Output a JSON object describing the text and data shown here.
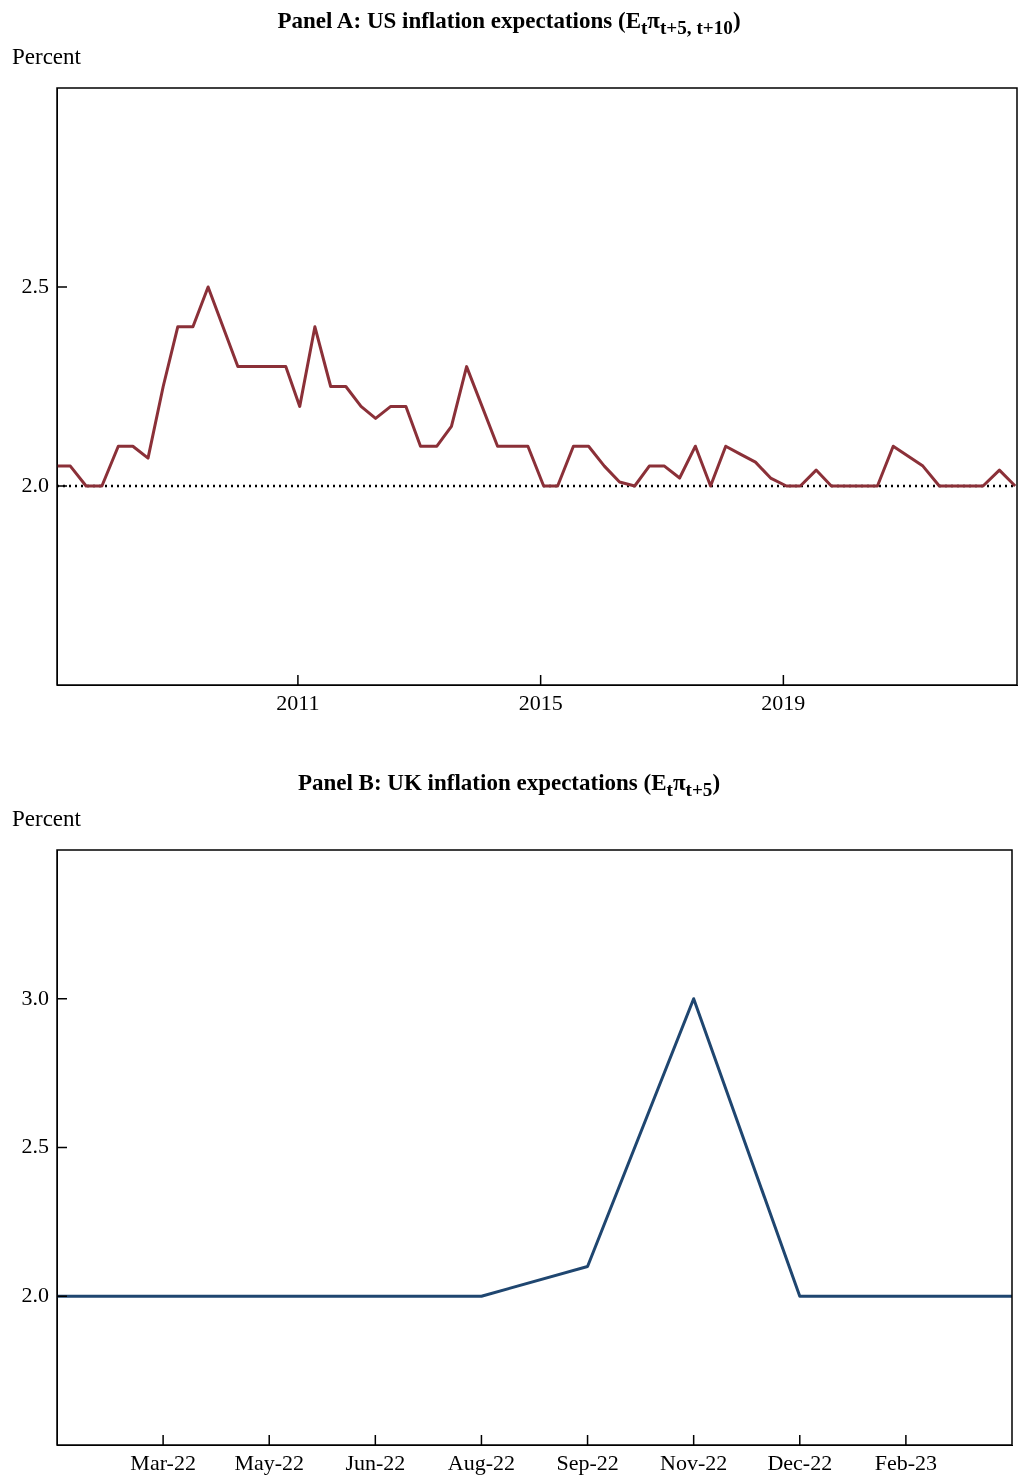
{
  "chart_data": [
    {
      "type": "line",
      "title": "Panel A: US inflation expectations (E$_{t}$π$_{t+5, t+10}$)",
      "ylabel": "Percent",
      "marker": "none",
      "grid": false,
      "x": [
        2007.03,
        2007.25,
        2007.51,
        2007.77,
        2008.04,
        2008.28,
        2008.53,
        2008.78,
        2009.02,
        2009.27,
        2009.52,
        2010.01,
        2010.8,
        2011.03,
        2011.28,
        2011.54,
        2011.79,
        2012.04,
        2012.28,
        2012.53,
        2012.78,
        2013.02,
        2013.29,
        2013.53,
        2013.78,
        2014.29,
        2014.79,
        2015.05,
        2015.28,
        2015.54,
        2015.79,
        2016.05,
        2016.3,
        2016.55,
        2016.79,
        2017.04,
        2017.29,
        2017.55,
        2017.8,
        2018.05,
        2018.29,
        2018.54,
        2018.79,
        2019.05,
        2019.28,
        2019.54,
        2019.79,
        2020.55,
        2020.81,
        2021.3,
        2021.57,
        2022.06,
        2022.29,
        2022.56,
        2022.82
      ],
      "series": [
        {
          "color": "#8b3038",
          "values": [
            2.05,
            2.05,
            2.0,
            2.0,
            2.1,
            2.1,
            2.07,
            2.25,
            2.4,
            2.4,
            2.5,
            2.3,
            2.3,
            2.2,
            2.4,
            2.25,
            2.25,
            2.2,
            2.17,
            2.2,
            2.2,
            2.1,
            2.1,
            2.15,
            2.3,
            2.1,
            2.1,
            2.0,
            2.0,
            2.1,
            2.1,
            2.05,
            2.01,
            2.0,
            2.05,
            2.05,
            2.02,
            2.1,
            2.0,
            2.1,
            2.08,
            2.06,
            2.02,
            2.0,
            2.0,
            2.04,
            2.0,
            2.0,
            2.1,
            2.05,
            2.0,
            2.0,
            2.0,
            2.04,
            2.0
          ]
        }
      ],
      "xlim": [
        2007.03,
        2022.85
      ],
      "xticks": [
        2011,
        2015,
        2019
      ],
      "ylim": [
        1.5,
        3.0
      ],
      "yticks": [
        {
          "value": 2.0,
          "label": "2.0"
        },
        {
          "value": 2.5,
          "label": "2.5"
        }
      ],
      "ref_lines": [
        {
          "axis": "y",
          "value": 2.0,
          "color": "#000000",
          "line_style": "dotted"
        }
      ]
    },
    {
      "type": "line",
      "title": "Panel B: UK inflation expectations (E$_{t}$π$_{t+5}$)",
      "ylabel": "Percent",
      "marker": "none",
      "grid": false,
      "categories": [
        null,
        "Mar-22",
        "May-22",
        "Jun-22",
        "Aug-22",
        "Sep-22",
        "Nov-22",
        "Dec-22",
        "Feb-23",
        null
      ],
      "series": [
        {
          "color": "#1f4670",
          "values": [
            2.0,
            2.0,
            2.0,
            2.0,
            2.0,
            2.1,
            3.0,
            2.0,
            2.0,
            2.0
          ]
        }
      ],
      "ylim": [
        1.5,
        3.5
      ],
      "yticks": [
        {
          "value": 2.0,
          "label": "2.0"
        },
        {
          "value": 2.5,
          "label": "2.5"
        },
        {
          "value": 3.0,
          "label": "3.0"
        }
      ]
    }
  ]
}
